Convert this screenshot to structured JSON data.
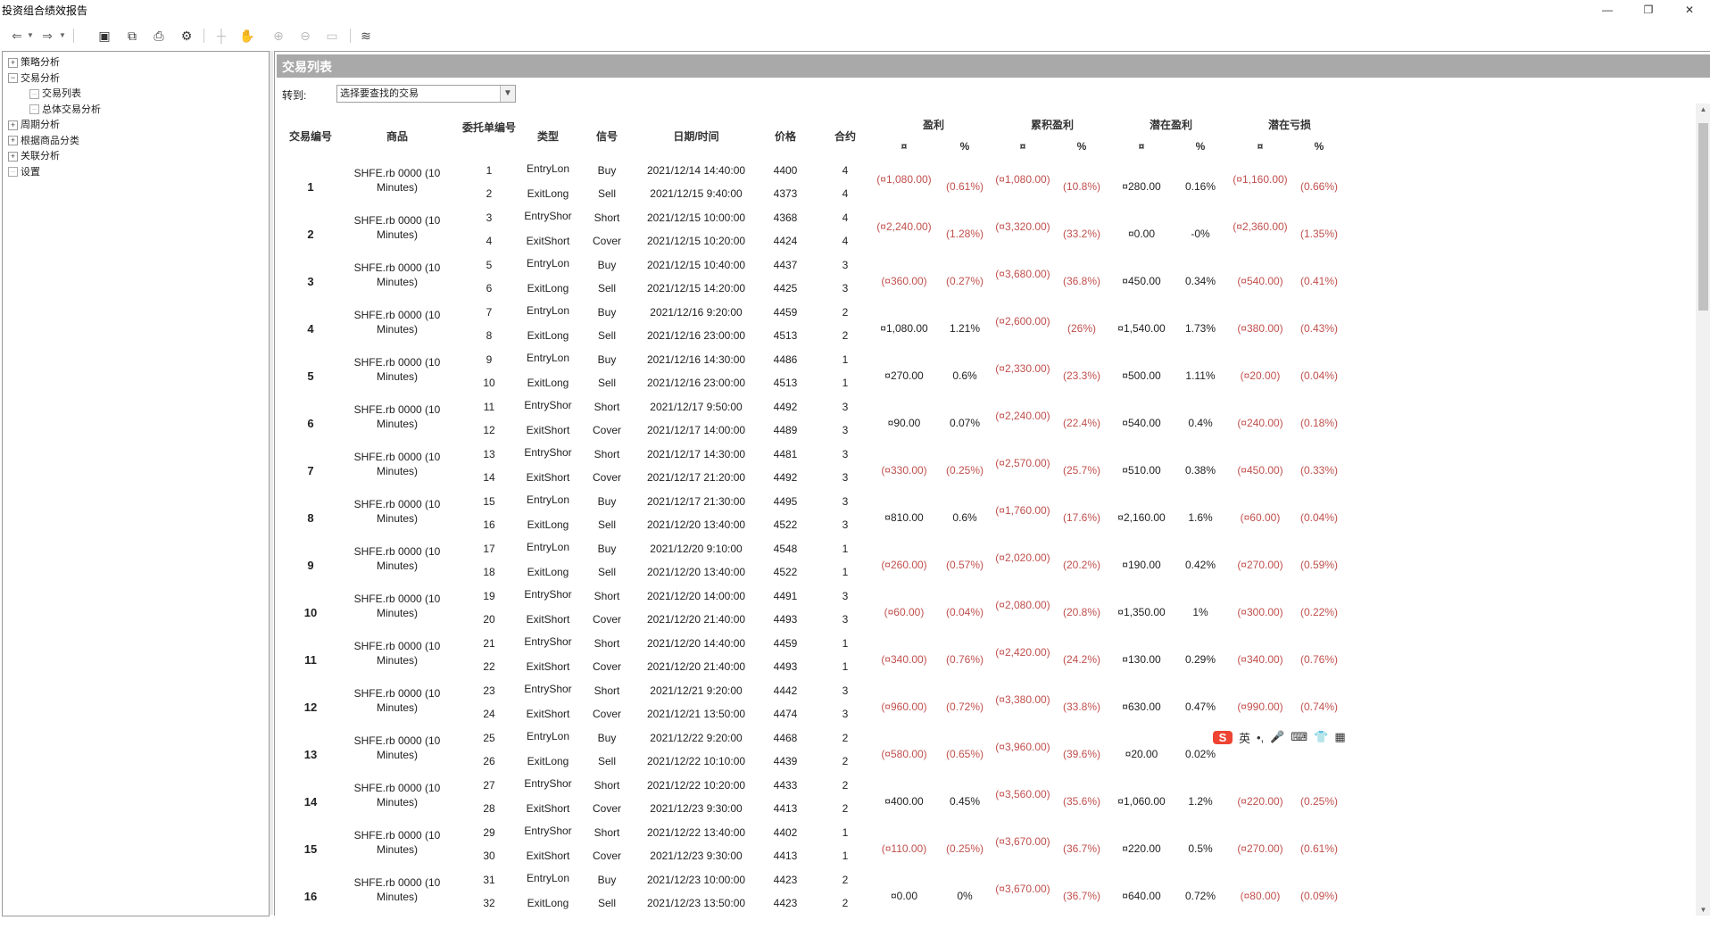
{
  "window": {
    "title": "投资组合绩效报告",
    "min": "—",
    "restore": "❐",
    "close": "✕"
  },
  "toolbar": {
    "icons": [
      "back-icon",
      "dropdown-icon",
      "forward-icon",
      "dropdown-icon",
      "save-icon",
      "copy-icon",
      "print-icon",
      "settings-icon",
      "crosshair-icon",
      "hand-icon",
      "zoom-in-icon",
      "zoom-out-icon",
      "fit-icon",
      "chart-icon"
    ]
  },
  "tree": {
    "items": [
      {
        "label": "策略分析",
        "level": 0,
        "kind": "plus"
      },
      {
        "label": "交易分析",
        "level": 0,
        "kind": "minus"
      },
      {
        "label": "交易列表",
        "level": 1,
        "kind": "leaf-active"
      },
      {
        "label": "总体交易分析",
        "level": 1,
        "kind": "leaf"
      },
      {
        "label": "周期分析",
        "level": 0,
        "kind": "plus"
      },
      {
        "label": "根据商品分类",
        "level": 0,
        "kind": "plus"
      },
      {
        "label": "关联分析",
        "level": 0,
        "kind": "plus"
      },
      {
        "label": "设置",
        "level": 0,
        "kind": "leaf"
      }
    ]
  },
  "panel": {
    "title": "交易列表",
    "jump_label": "转到:",
    "select_value": "选择要查找的交易"
  },
  "headers": {
    "trade_no": "交易编号",
    "product": "商品",
    "order_no": "委托单编号",
    "type": "类型",
    "signal": "信号",
    "datetime": "日期/时间",
    "price": "价格",
    "contracts": "合约",
    "profit": "盈利",
    "cum_profit": "累积盈利",
    "potential_profit": "潜在盈利",
    "potential_loss": "潜在亏损",
    "currency": "¤",
    "pct": "%"
  },
  "trades": [
    {
      "no": "1",
      "product": "SHFE.rb 0000 (10 Minutes)",
      "legs": [
        {
          "order": "1",
          "type": "EntryLon",
          "signal": "Buy",
          "dt": "2021/12/14 14:40:00",
          "price": "4400",
          "qty": "4"
        },
        {
          "order": "2",
          "type": "ExitLong",
          "signal": "Sell",
          "dt": "2021/12/15 9:40:00",
          "price": "4373",
          "qty": "4"
        }
      ],
      "profit": "(¤1,080.00)",
      "profit_pct": "(0.61%)",
      "cum": "(¤1,080.00)",
      "cum_pct": "(10.8%)",
      "pp": "¤280.00",
      "pp_pct": "0.16%",
      "pl": "(¤1,160.00)",
      "pl_pct": "(0.66%)",
      "neg": true,
      "cum_neg": true
    },
    {
      "no": "2",
      "product": "SHFE.rb 0000 (10 Minutes)",
      "legs": [
        {
          "order": "3",
          "type": "EntryShor",
          "signal": "Short",
          "dt": "2021/12/15 10:00:00",
          "price": "4368",
          "qty": "4"
        },
        {
          "order": "4",
          "type": "ExitShort",
          "signal": "Cover",
          "dt": "2021/12/15 10:20:00",
          "price": "4424",
          "qty": "4"
        }
      ],
      "profit": "(¤2,240.00)",
      "profit_pct": "(1.28%)",
      "cum": "(¤3,320.00)",
      "cum_pct": "(33.2%)",
      "pp": "¤0.00",
      "pp_pct": "-0%",
      "pl": "(¤2,360.00)",
      "pl_pct": "(1.35%)",
      "neg": true,
      "cum_neg": true
    },
    {
      "no": "3",
      "product": "SHFE.rb 0000 (10 Minutes)",
      "legs": [
        {
          "order": "5",
          "type": "EntryLon",
          "signal": "Buy",
          "dt": "2021/12/15 10:40:00",
          "price": "4437",
          "qty": "3"
        },
        {
          "order": "6",
          "type": "ExitLong",
          "signal": "Sell",
          "dt": "2021/12/15 14:20:00",
          "price": "4425",
          "qty": "3"
        }
      ],
      "profit": "(¤360.00)",
      "profit_pct": "(0.27%)",
      "cum": "(¤3,680.00)",
      "cum_pct": "(36.8%)",
      "pp": "¤450.00",
      "pp_pct": "0.34%",
      "pl": "(¤540.00)",
      "pl_pct": "(0.41%)",
      "neg": true,
      "cum_neg": true
    },
    {
      "no": "4",
      "product": "SHFE.rb 0000 (10 Minutes)",
      "legs": [
        {
          "order": "7",
          "type": "EntryLon",
          "signal": "Buy",
          "dt": "2021/12/16 9:20:00",
          "price": "4459",
          "qty": "2"
        },
        {
          "order": "8",
          "type": "ExitLong",
          "signal": "Sell",
          "dt": "2021/12/16 23:00:00",
          "price": "4513",
          "qty": "2"
        }
      ],
      "profit": "¤1,080.00",
      "profit_pct": "1.21%",
      "cum": "(¤2,600.00)",
      "cum_pct": "(26%)",
      "pp": "¤1,540.00",
      "pp_pct": "1.73%",
      "pl": "(¤380.00)",
      "pl_pct": "(0.43%)",
      "neg": false,
      "cum_neg": true
    },
    {
      "no": "5",
      "product": "SHFE.rb 0000 (10 Minutes)",
      "legs": [
        {
          "order": "9",
          "type": "EntryLon",
          "signal": "Buy",
          "dt": "2021/12/16 14:30:00",
          "price": "4486",
          "qty": "1"
        },
        {
          "order": "10",
          "type": "ExitLong",
          "signal": "Sell",
          "dt": "2021/12/16 23:00:00",
          "price": "4513",
          "qty": "1"
        }
      ],
      "profit": "¤270.00",
      "profit_pct": "0.6%",
      "cum": "(¤2,330.00)",
      "cum_pct": "(23.3%)",
      "pp": "¤500.00",
      "pp_pct": "1.11%",
      "pl": "(¤20.00)",
      "pl_pct": "(0.04%)",
      "neg": false,
      "cum_neg": true
    },
    {
      "no": "6",
      "product": "SHFE.rb 0000 (10 Minutes)",
      "legs": [
        {
          "order": "11",
          "type": "EntryShor",
          "signal": "Short",
          "dt": "2021/12/17 9:50:00",
          "price": "4492",
          "qty": "3"
        },
        {
          "order": "12",
          "type": "ExitShort",
          "signal": "Cover",
          "dt": "2021/12/17 14:00:00",
          "price": "4489",
          "qty": "3"
        }
      ],
      "profit": "¤90.00",
      "profit_pct": "0.07%",
      "cum": "(¤2,240.00)",
      "cum_pct": "(22.4%)",
      "pp": "¤540.00",
      "pp_pct": "0.4%",
      "pl": "(¤240.00)",
      "pl_pct": "(0.18%)",
      "neg": false,
      "cum_neg": true
    },
    {
      "no": "7",
      "product": "SHFE.rb 0000 (10 Minutes)",
      "legs": [
        {
          "order": "13",
          "type": "EntryShor",
          "signal": "Short",
          "dt": "2021/12/17 14:30:00",
          "price": "4481",
          "qty": "3"
        },
        {
          "order": "14",
          "type": "ExitShort",
          "signal": "Cover",
          "dt": "2021/12/17 21:20:00",
          "price": "4492",
          "qty": "3"
        }
      ],
      "profit": "(¤330.00)",
      "profit_pct": "(0.25%)",
      "cum": "(¤2,570.00)",
      "cum_pct": "(25.7%)",
      "pp": "¤510.00",
      "pp_pct": "0.38%",
      "pl": "(¤450.00)",
      "pl_pct": "(0.33%)",
      "neg": true,
      "cum_neg": true
    },
    {
      "no": "8",
      "product": "SHFE.rb 0000 (10 Minutes)",
      "legs": [
        {
          "order": "15",
          "type": "EntryLon",
          "signal": "Buy",
          "dt": "2021/12/17 21:30:00",
          "price": "4495",
          "qty": "3"
        },
        {
          "order": "16",
          "type": "ExitLong",
          "signal": "Sell",
          "dt": "2021/12/20 13:40:00",
          "price": "4522",
          "qty": "3"
        }
      ],
      "profit": "¤810.00",
      "profit_pct": "0.6%",
      "cum": "(¤1,760.00)",
      "cum_pct": "(17.6%)",
      "pp": "¤2,160.00",
      "pp_pct": "1.6%",
      "pl": "(¤60.00)",
      "pl_pct": "(0.04%)",
      "neg": false,
      "cum_neg": true
    },
    {
      "no": "9",
      "product": "SHFE.rb 0000 (10 Minutes)",
      "legs": [
        {
          "order": "17",
          "type": "EntryLon",
          "signal": "Buy",
          "dt": "2021/12/20 9:10:00",
          "price": "4548",
          "qty": "1"
        },
        {
          "order": "18",
          "type": "ExitLong",
          "signal": "Sell",
          "dt": "2021/12/20 13:40:00",
          "price": "4522",
          "qty": "1"
        }
      ],
      "profit": "(¤260.00)",
      "profit_pct": "(0.57%)",
      "cum": "(¤2,020.00)",
      "cum_pct": "(20.2%)",
      "pp": "¤190.00",
      "pp_pct": "0.42%",
      "pl": "(¤270.00)",
      "pl_pct": "(0.59%)",
      "neg": true,
      "cum_neg": true
    },
    {
      "no": "10",
      "product": "SHFE.rb 0000 (10 Minutes)",
      "legs": [
        {
          "order": "19",
          "type": "EntryShor",
          "signal": "Short",
          "dt": "2021/12/20 14:00:00",
          "price": "4491",
          "qty": "3"
        },
        {
          "order": "20",
          "type": "ExitShort",
          "signal": "Cover",
          "dt": "2021/12/20 21:40:00",
          "price": "4493",
          "qty": "3"
        }
      ],
      "profit": "(¤60.00)",
      "profit_pct": "(0.04%)",
      "cum": "(¤2,080.00)",
      "cum_pct": "(20.8%)",
      "pp": "¤1,350.00",
      "pp_pct": "1%",
      "pl": "(¤300.00)",
      "pl_pct": "(0.22%)",
      "neg": true,
      "cum_neg": true
    },
    {
      "no": "11",
      "product": "SHFE.rb 0000 (10 Minutes)",
      "legs": [
        {
          "order": "21",
          "type": "EntryShor",
          "signal": "Short",
          "dt": "2021/12/20 14:40:00",
          "price": "4459",
          "qty": "1"
        },
        {
          "order": "22",
          "type": "ExitShort",
          "signal": "Cover",
          "dt": "2021/12/20 21:40:00",
          "price": "4493",
          "qty": "1"
        }
      ],
      "profit": "(¤340.00)",
      "profit_pct": "(0.76%)",
      "cum": "(¤2,420.00)",
      "cum_pct": "(24.2%)",
      "pp": "¤130.00",
      "pp_pct": "0.29%",
      "pl": "(¤340.00)",
      "pl_pct": "(0.76%)",
      "neg": true,
      "cum_neg": true
    },
    {
      "no": "12",
      "product": "SHFE.rb 0000 (10 Minutes)",
      "legs": [
        {
          "order": "23",
          "type": "EntryShor",
          "signal": "Short",
          "dt": "2021/12/21 9:20:00",
          "price": "4442",
          "qty": "3"
        },
        {
          "order": "24",
          "type": "ExitShort",
          "signal": "Cover",
          "dt": "2021/12/21 13:50:00",
          "price": "4474",
          "qty": "3"
        }
      ],
      "profit": "(¤960.00)",
      "profit_pct": "(0.72%)",
      "cum": "(¤3,380.00)",
      "cum_pct": "(33.8%)",
      "pp": "¤630.00",
      "pp_pct": "0.47%",
      "pl": "(¤990.00)",
      "pl_pct": "(0.74%)",
      "neg": true,
      "cum_neg": true
    },
    {
      "no": "13",
      "product": "SHFE.rb 0000 (10 Minutes)",
      "legs": [
        {
          "order": "25",
          "type": "EntryLon",
          "signal": "Buy",
          "dt": "2021/12/22 9:20:00",
          "price": "4468",
          "qty": "2"
        },
        {
          "order": "26",
          "type": "ExitLong",
          "signal": "Sell",
          "dt": "2021/12/22 10:10:00",
          "price": "4439",
          "qty": "2"
        }
      ],
      "profit": "(¤580.00)",
      "profit_pct": "(0.65%)",
      "cum": "(¤3,960.00)",
      "cum_pct": "(39.6%)",
      "pp": "¤20.00",
      "pp_pct": "0.02%",
      "pl": "",
      "pl_pct": "",
      "neg": true,
      "cum_neg": true
    },
    {
      "no": "14",
      "product": "SHFE.rb 0000 (10 Minutes)",
      "legs": [
        {
          "order": "27",
          "type": "EntryShor",
          "signal": "Short",
          "dt": "2021/12/22 10:20:00",
          "price": "4433",
          "qty": "2"
        },
        {
          "order": "28",
          "type": "ExitShort",
          "signal": "Cover",
          "dt": "2021/12/23 9:30:00",
          "price": "4413",
          "qty": "2"
        }
      ],
      "profit": "¤400.00",
      "profit_pct": "0.45%",
      "cum": "(¤3,560.00)",
      "cum_pct": "(35.6%)",
      "pp": "¤1,060.00",
      "pp_pct": "1.2%",
      "pl": "(¤220.00)",
      "pl_pct": "(0.25%)",
      "neg": false,
      "cum_neg": true
    },
    {
      "no": "15",
      "product": "SHFE.rb 0000 (10 Minutes)",
      "legs": [
        {
          "order": "29",
          "type": "EntryShor",
          "signal": "Short",
          "dt": "2021/12/22 13:40:00",
          "price": "4402",
          "qty": "1"
        },
        {
          "order": "30",
          "type": "ExitShort",
          "signal": "Cover",
          "dt": "2021/12/23 9:30:00",
          "price": "4413",
          "qty": "1"
        }
      ],
      "profit": "(¤110.00)",
      "profit_pct": "(0.25%)",
      "cum": "(¤3,670.00)",
      "cum_pct": "(36.7%)",
      "pp": "¤220.00",
      "pp_pct": "0.5%",
      "pl": "(¤270.00)",
      "pl_pct": "(0.61%)",
      "neg": true,
      "cum_neg": true
    },
    {
      "no": "16",
      "product": "SHFE.rb 0000 (10 Minutes)",
      "legs": [
        {
          "order": "31",
          "type": "EntryLon",
          "signal": "Buy",
          "dt": "2021/12/23 10:00:00",
          "price": "4423",
          "qty": "2"
        },
        {
          "order": "32",
          "type": "ExitLong",
          "signal": "Sell",
          "dt": "2021/12/23 13:50:00",
          "price": "4423",
          "qty": "2"
        }
      ],
      "profit": "¤0.00",
      "profit_pct": "0%",
      "cum": "(¤3,670.00)",
      "cum_pct": "(36.7%)",
      "pp": "¤640.00",
      "pp_pct": "0.72%",
      "pl": "(¤80.00)",
      "pl_pct": "(0.09%)",
      "neg": false,
      "cum_neg": true
    }
  ],
  "ime": {
    "logo": "S",
    "lang": "英",
    "punct": "•,",
    "mic": "🎤",
    "kbd": "⌨",
    "shirt": "👕",
    "grid": "▦"
  },
  "colors": {
    "negative": "#c0504d",
    "banner": "#a9a9a9"
  }
}
